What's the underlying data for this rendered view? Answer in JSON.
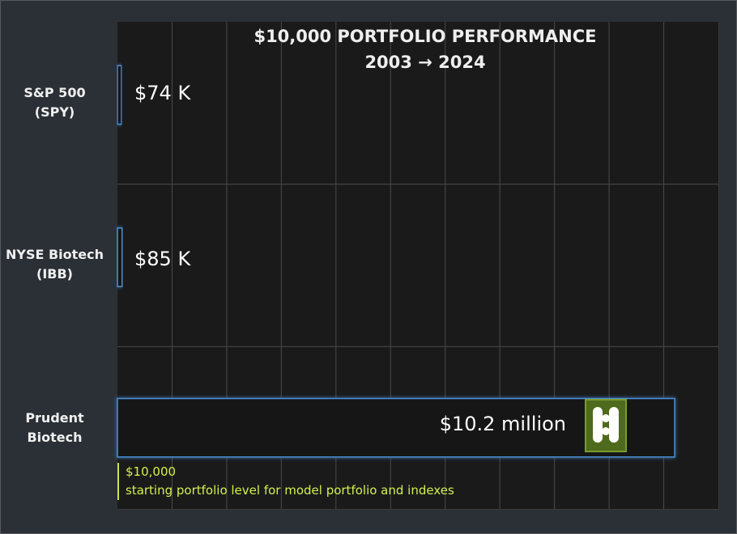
{
  "chart_data": {
    "type": "bar",
    "orientation": "horizontal",
    "title": "$10,000 PORTFOLIO PERFORMANCE",
    "subtitle": "2003 → 2024",
    "categories": [
      "S&P 500\n(SPY)",
      "NYSE Biotech\n(IBB)",
      "Prudent\nBiotech"
    ],
    "values": [
      74000,
      85000,
      10200000
    ],
    "value_labels": [
      "$74 K",
      "$85 K",
      "$10.2 million"
    ],
    "xlim": [
      0,
      11000000
    ],
    "grid": true,
    "legend": "none",
    "colors": {
      "bar_outline": "#4a90d9",
      "background": "#1a1a1a",
      "note": "#d4f050",
      "logo": "#4e6a1c"
    },
    "annotation": {
      "value": "$10,000",
      "text": "starting portfolio level for model portfolio and indexes"
    },
    "icons": [
      "prudent-biotech-logo-icon"
    ]
  }
}
